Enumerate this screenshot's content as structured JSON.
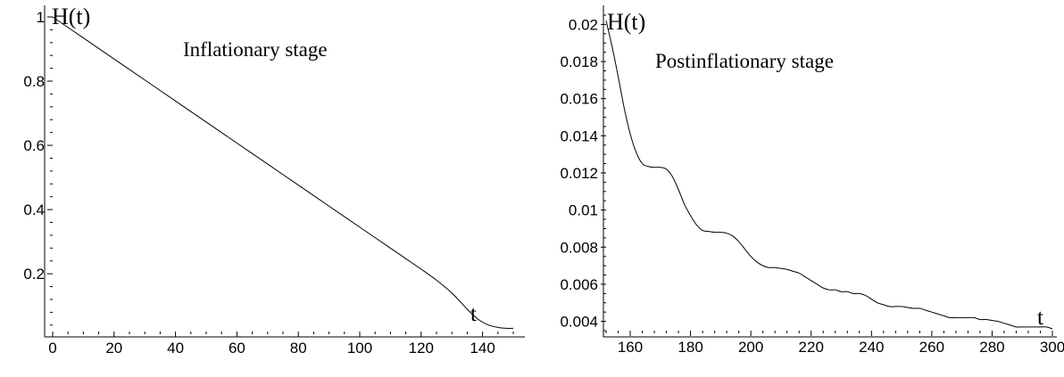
{
  "chart_data": [
    {
      "type": "line",
      "annotation": "Inflationary stage",
      "xlabel": "t",
      "ylabel": "H(t)",
      "xlim": [
        0,
        150
      ],
      "ylim": [
        0.02,
        1.0
      ],
      "x_ticks": [
        0,
        20,
        40,
        60,
        80,
        100,
        120,
        140
      ],
      "x_tick_labels": [
        "0",
        "20",
        "40",
        "60",
        "80",
        "100",
        "120",
        "140"
      ],
      "y_ticks": [
        0.2,
        0.4,
        0.6,
        0.8,
        1.0
      ],
      "y_tick_labels": [
        "0.2",
        "0.4",
        "0.6",
        "0.8",
        "1"
      ],
      "grid": false,
      "series": [
        {
          "x": [
            0,
            10,
            20,
            30,
            40,
            50,
            60,
            70,
            80,
            90,
            100,
            110,
            120,
            125,
            130,
            133,
            136,
            139,
            142,
            145,
            148,
            150
          ],
          "y": [
            1.0,
            0.9345,
            0.869,
            0.8036,
            0.7381,
            0.6726,
            0.6071,
            0.5417,
            0.4762,
            0.4107,
            0.3452,
            0.2798,
            0.2143,
            0.18,
            0.14,
            0.11,
            0.08,
            0.055,
            0.04,
            0.033,
            0.03,
            0.03
          ]
        }
      ]
    },
    {
      "type": "line",
      "annotation": "Postinflationary stage",
      "xlabel": "t",
      "ylabel": "H(t)",
      "xlim": [
        152,
        300
      ],
      "ylim": [
        0.0035,
        0.0205
      ],
      "x_ticks": [
        160,
        180,
        200,
        220,
        240,
        260,
        280,
        300
      ],
      "x_tick_labels": [
        "160",
        "180",
        "200",
        "220",
        "240",
        "260",
        "280",
        "300"
      ],
      "y_ticks": [
        0.004,
        0.006,
        0.008,
        0.01,
        0.012,
        0.014,
        0.016,
        0.018,
        0.02
      ],
      "y_tick_labels": [
        "0.004",
        "0.006",
        "0.008",
        "0.01",
        "0.012",
        "0.014",
        "0.016",
        "0.018",
        "0.02"
      ],
      "grid": false,
      "series": [
        {
          "x": [
            152,
            154,
            156,
            158,
            160,
            162,
            164,
            166,
            168,
            170,
            172,
            174,
            176,
            178,
            180,
            182,
            184,
            186,
            188,
            190,
            192,
            194,
            196,
            198,
            200,
            202,
            204,
            206,
            208,
            210,
            212,
            214,
            216,
            218,
            220,
            222,
            224,
            226,
            228,
            230,
            232,
            234,
            236,
            238,
            240,
            242,
            244,
            246,
            248,
            250,
            252,
            254,
            256,
            258,
            260,
            262,
            264,
            266,
            268,
            270,
            272,
            274,
            276,
            278,
            280,
            282,
            284,
            286,
            288,
            290,
            292,
            294,
            296,
            298,
            300
          ],
          "y": [
            0.0202,
            0.0188,
            0.0172,
            0.0155,
            0.0141,
            0.0131,
            0.0125,
            0.01235,
            0.0123,
            0.0123,
            0.0122,
            0.0118,
            0.0111,
            0.0103,
            0.0097,
            0.0092,
            0.0089,
            0.00885,
            0.0088,
            0.0088,
            0.00875,
            0.0086,
            0.0083,
            0.0079,
            0.0075,
            0.0072,
            0.007,
            0.0069,
            0.0069,
            0.00685,
            0.0068,
            0.0067,
            0.0066,
            0.0064,
            0.0062,
            0.006,
            0.0058,
            0.0057,
            0.0057,
            0.0056,
            0.0056,
            0.0055,
            0.0055,
            0.0054,
            0.0052,
            0.005,
            0.0049,
            0.0048,
            0.0048,
            0.0048,
            0.00475,
            0.0047,
            0.0047,
            0.0046,
            0.0045,
            0.0044,
            0.0043,
            0.0042,
            0.0042,
            0.0042,
            0.0042,
            0.0042,
            0.0041,
            0.0041,
            0.00405,
            0.004,
            0.0039,
            0.0038,
            0.0037,
            0.0037,
            0.0037,
            0.0037,
            0.0037,
            0.0037,
            0.0036
          ]
        }
      ]
    }
  ]
}
